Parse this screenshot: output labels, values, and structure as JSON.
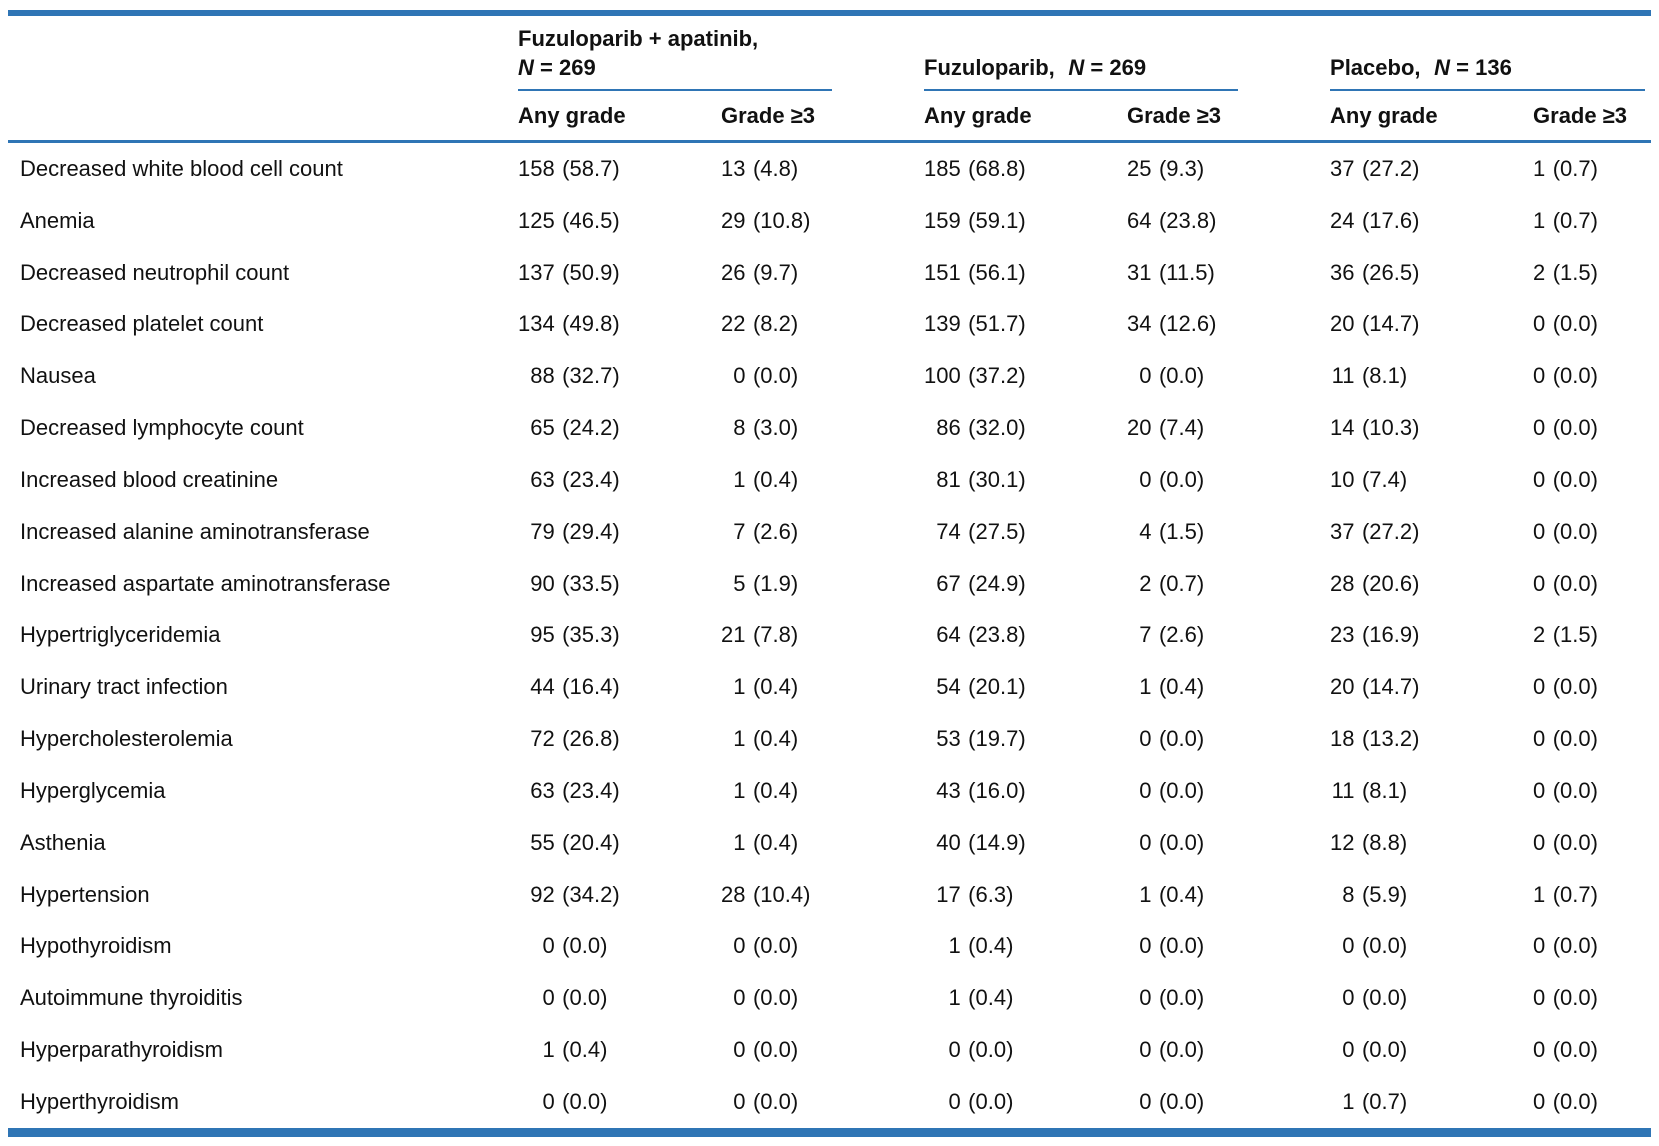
{
  "colors": {
    "accent_blue": "#2F75B5"
  },
  "table": {
    "header": {
      "groups": [
        {
          "name": "Fuzuloparib + apatinib,",
          "n_label": "N",
          "n_value": "= 269",
          "two_line": true
        },
        {
          "name": "Fuzuloparib,",
          "n_label": "N",
          "n_value": "= 269",
          "two_line": false
        },
        {
          "name": "Placebo,",
          "n_label": "N",
          "n_value": "= 136",
          "two_line": false
        }
      ],
      "subcolumns": {
        "any_grade": "Any grade",
        "grade_ge3": "Grade ≥3"
      }
    },
    "rows": [
      {
        "event": "Decreased white blood cell count",
        "values": [
          "158 (58.7)",
          "13 (4.8)",
          "185 (68.8)",
          "25 (9.3)",
          "37 (27.2)",
          "1 (0.7)"
        ]
      },
      {
        "event": "Anemia",
        "values": [
          "125 (46.5)",
          "29 (10.8)",
          "159 (59.1)",
          "64 (23.8)",
          "24 (17.6)",
          "1 (0.7)"
        ]
      },
      {
        "event": "Decreased neutrophil count",
        "values": [
          "137 (50.9)",
          "26 (9.7)",
          "151 (56.1)",
          "31 (11.5)",
          "36 (26.5)",
          "2 (1.5)"
        ]
      },
      {
        "event": "Decreased platelet count",
        "values": [
          "134 (49.8)",
          "22 (8.2)",
          "139 (51.7)",
          "34 (12.6)",
          "20 (14.7)",
          "0 (0.0)"
        ]
      },
      {
        "event": "Nausea",
        "values": [
          "88 (32.7)",
          "0 (0.0)",
          "100 (37.2)",
          "0 (0.0)",
          "11 (8.1)",
          "0 (0.0)"
        ]
      },
      {
        "event": "Decreased lymphocyte count",
        "values": [
          "65 (24.2)",
          "8 (3.0)",
          "86 (32.0)",
          "20 (7.4)",
          "14 (10.3)",
          "0 (0.0)"
        ]
      },
      {
        "event": "Increased blood creatinine",
        "values": [
          "63 (23.4)",
          "1 (0.4)",
          "81 (30.1)",
          "0 (0.0)",
          "10 (7.4)",
          "0 (0.0)"
        ]
      },
      {
        "event": "Increased alanine aminotransferase",
        "values": [
          "79 (29.4)",
          "7 (2.6)",
          "74 (27.5)",
          "4 (1.5)",
          "37 (27.2)",
          "0 (0.0)"
        ]
      },
      {
        "event": "Increased aspartate aminotransferase",
        "values": [
          "90 (33.5)",
          "5 (1.9)",
          "67 (24.9)",
          "2 (0.7)",
          "28 (20.6)",
          "0 (0.0)"
        ]
      },
      {
        "event": "Hypertriglyceridemia",
        "values": [
          "95 (35.3)",
          "21 (7.8)",
          "64 (23.8)",
          "7 (2.6)",
          "23 (16.9)",
          "2 (1.5)"
        ]
      },
      {
        "event": "Urinary tract infection",
        "values": [
          "44 (16.4)",
          "1 (0.4)",
          "54 (20.1)",
          "1 (0.4)",
          "20 (14.7)",
          "0 (0.0)"
        ]
      },
      {
        "event": "Hypercholesterolemia",
        "values": [
          "72 (26.8)",
          "1 (0.4)",
          "53 (19.7)",
          "0 (0.0)",
          "18 (13.2)",
          "0 (0.0)"
        ]
      },
      {
        "event": "Hyperglycemia",
        "values": [
          "63 (23.4)",
          "1 (0.4)",
          "43 (16.0)",
          "0 (0.0)",
          "11 (8.1)",
          "0 (0.0)"
        ]
      },
      {
        "event": "Asthenia",
        "values": [
          "55 (20.4)",
          "1 (0.4)",
          "40 (14.9)",
          "0 (0.0)",
          "12 (8.8)",
          "0 (0.0)"
        ]
      },
      {
        "event": "Hypertension",
        "values": [
          "92 (34.2)",
          "28 (10.4)",
          "17 (6.3)",
          "1 (0.4)",
          "8 (5.9)",
          "1 (0.7)"
        ]
      },
      {
        "event": "Hypothyroidism",
        "values": [
          "0 (0.0)",
          "0 (0.0)",
          "1 (0.4)",
          "0 (0.0)",
          "0 (0.0)",
          "0 (0.0)"
        ]
      },
      {
        "event": "Autoimmune thyroiditis",
        "values": [
          "0 (0.0)",
          "0 (0.0)",
          "1 (0.4)",
          "0 (0.0)",
          "0 (0.0)",
          "0 (0.0)"
        ]
      },
      {
        "event": "Hyperparathyroidism",
        "values": [
          "1 (0.4)",
          "0 (0.0)",
          "0 (0.0)",
          "0 (0.0)",
          "0 (0.0)",
          "0 (0.0)"
        ]
      },
      {
        "event": "Hyperthyroidism",
        "values": [
          "0 (0.0)",
          "0 (0.0)",
          "0 (0.0)",
          "0 (0.0)",
          "1 (0.7)",
          "0 (0.0)"
        ]
      }
    ]
  }
}
